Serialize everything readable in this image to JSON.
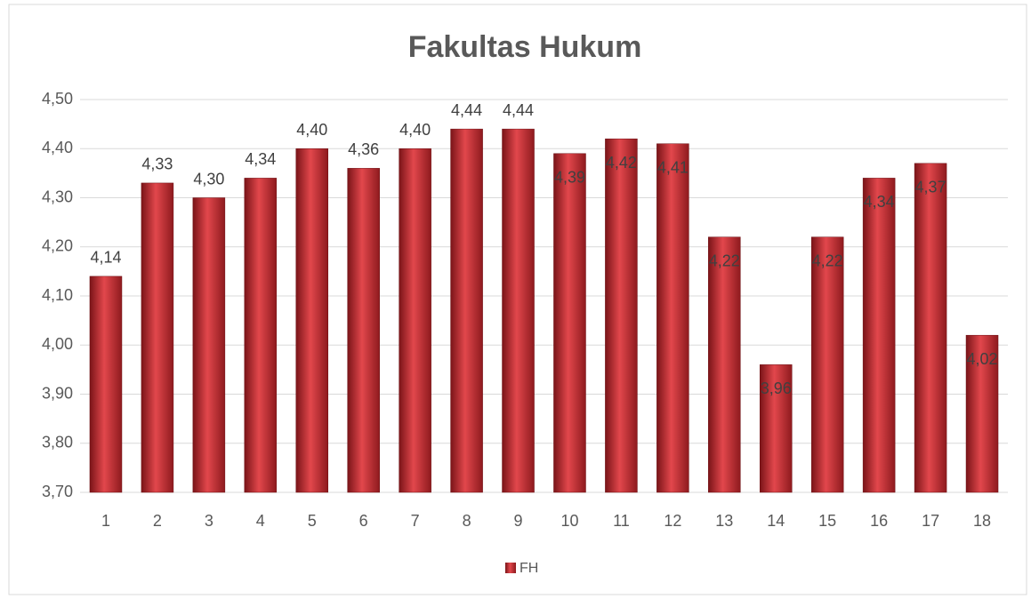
{
  "chart_data": {
    "type": "bar",
    "title": "Fakultas Hukum",
    "categories": [
      "1",
      "2",
      "3",
      "4",
      "5",
      "6",
      "7",
      "8",
      "9",
      "10",
      "11",
      "12",
      "13",
      "14",
      "15",
      "16",
      "17",
      "18"
    ],
    "series": [
      {
        "name": "FH",
        "color": "#c0272d",
        "values": [
          4.14,
          4.33,
          4.3,
          4.34,
          4.4,
          4.36,
          4.4,
          4.44,
          4.44,
          4.39,
          4.42,
          4.41,
          4.22,
          3.96,
          4.22,
          4.34,
          4.37,
          4.02
        ],
        "value_labels": [
          "4,14",
          "4,33",
          "4,30",
          "4,34",
          "4,40",
          "4,36",
          "4,40",
          "4,44",
          "4,44",
          "4,39",
          "4,42",
          "4,41",
          "4,22",
          "3,96",
          "4,22",
          "4,34",
          "4,37",
          "4,02"
        ]
      }
    ],
    "ylim": [
      3.7,
      4.5
    ],
    "yticks": [
      {
        "value": 3.7,
        "label": "3,70"
      },
      {
        "value": 3.8,
        "label": "3,80"
      },
      {
        "value": 3.9,
        "label": "3,90"
      },
      {
        "value": 4.0,
        "label": "4,00"
      },
      {
        "value": 4.1,
        "label": "4,10"
      },
      {
        "value": 4.2,
        "label": "4,20"
      },
      {
        "value": 4.3,
        "label": "4,30"
      },
      {
        "value": 4.4,
        "label": "4,40"
      },
      {
        "value": 4.5,
        "label": "4,50"
      }
    ],
    "grid": true,
    "legend": "bottom"
  }
}
